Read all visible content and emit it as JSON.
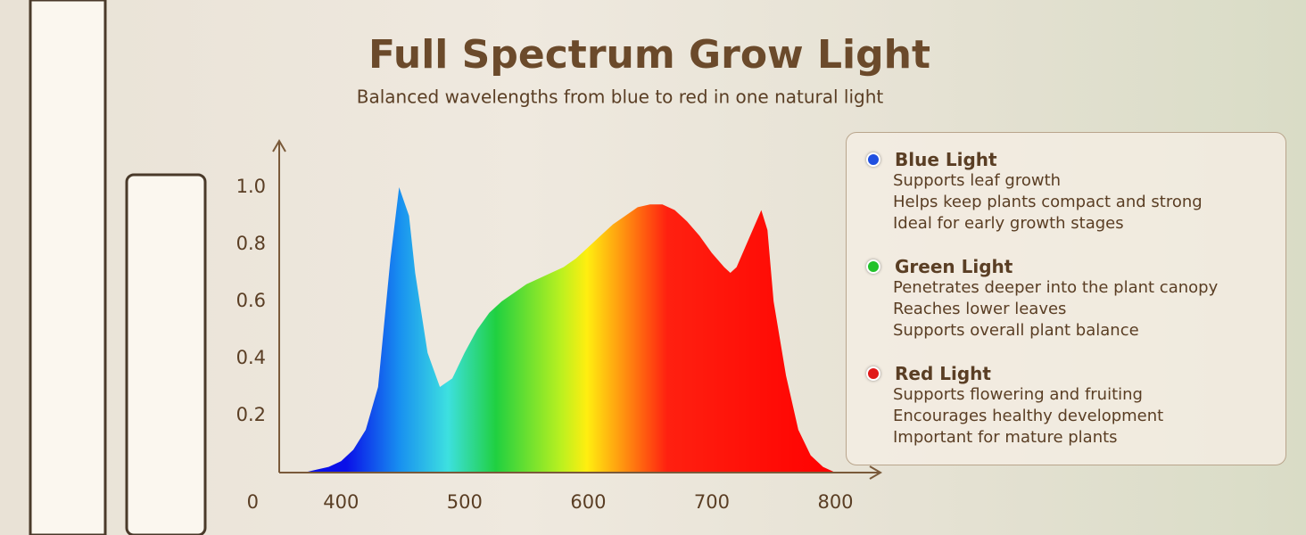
{
  "chart_data": {
    "type": "area",
    "title": "Full Spectrum Grow Light",
    "subtitle": "Balanced wavelengths from blue to red in one natural light",
    "x": [
      370,
      380,
      390,
      400,
      410,
      420,
      430,
      440,
      447,
      455,
      460,
      470,
      480,
      490,
      500,
      510,
      520,
      530,
      540,
      550,
      560,
      570,
      580,
      590,
      600,
      610,
      620,
      630,
      640,
      650,
      660,
      670,
      680,
      690,
      700,
      710,
      715,
      720,
      730,
      740,
      745,
      750,
      760,
      770,
      780,
      790,
      800
    ],
    "values": [
      0,
      0.01,
      0.02,
      0.04,
      0.08,
      0.15,
      0.3,
      0.75,
      1.0,
      0.9,
      0.7,
      0.42,
      0.3,
      0.33,
      0.42,
      0.5,
      0.56,
      0.6,
      0.63,
      0.66,
      0.68,
      0.7,
      0.72,
      0.75,
      0.79,
      0.83,
      0.87,
      0.9,
      0.93,
      0.94,
      0.94,
      0.92,
      0.88,
      0.83,
      0.77,
      0.72,
      0.7,
      0.72,
      0.82,
      0.92,
      0.85,
      0.6,
      0.34,
      0.15,
      0.06,
      0.02,
      0
    ],
    "xlim": [
      350,
      835
    ],
    "ylim": [
      0,
      1.1
    ],
    "xticks": [
      400,
      500,
      600,
      700,
      800
    ],
    "yticks": [
      0,
      0.2,
      0.4,
      0.6,
      0.8,
      {
        "value": 1,
        "label": "1.0"
      }
    ]
  },
  "info_panel": {
    "items": [
      {
        "title": "Blue Light",
        "color": "#1f4fe0",
        "lines": [
          "Supports leaf growth",
          "Helps keep plants compact and strong",
          "Ideal for early growth stages"
        ]
      },
      {
        "title": "Green Light",
        "color": "#22c22a",
        "lines": [
          "Penetrates deeper into the plant canopy",
          "Reaches lower leaves",
          "Supports overall plant balance"
        ]
      },
      {
        "title": "Red Light",
        "color": "#e01818",
        "lines": [
          "Supports flowering and fruiting",
          "Encourages healthy development",
          "Important for mature plants"
        ]
      }
    ]
  }
}
